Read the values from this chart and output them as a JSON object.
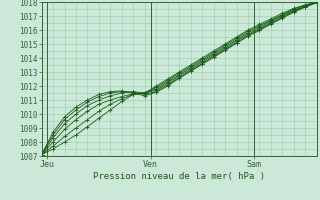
{
  "title": "",
  "xlabel": "Pression niveau de la mer( hPa )",
  "ylabel": "",
  "ylim": [
    1007,
    1018
  ],
  "xlim": [
    0,
    96
  ],
  "yticks": [
    1007,
    1008,
    1009,
    1010,
    1011,
    1012,
    1013,
    1014,
    1015,
    1016,
    1017,
    1018
  ],
  "xtick_positions": [
    2,
    38,
    74
  ],
  "xtick_labels": [
    "Jeu",
    "Ven",
    "Sam"
  ],
  "vline_positions": [
    2,
    38,
    74
  ],
  "bg_color": "#cce8d8",
  "grid_color": "#99ccaa",
  "line_color": "#1a5c1a",
  "marker": "+",
  "lines": [
    {
      "x": [
        0,
        4,
        8,
        12,
        16,
        20,
        24,
        28,
        32,
        36,
        40,
        44,
        48,
        52,
        56,
        60,
        64,
        68,
        72,
        76,
        80,
        84,
        88,
        92,
        96
      ],
      "y": [
        1007.1,
        1007.5,
        1008.0,
        1008.5,
        1009.1,
        1009.7,
        1010.3,
        1010.9,
        1011.4,
        1011.5,
        1012.0,
        1012.5,
        1013.0,
        1013.5,
        1014.0,
        1014.5,
        1015.0,
        1015.5,
        1016.0,
        1016.4,
        1016.8,
        1017.2,
        1017.55,
        1017.8,
        1018.0
      ]
    },
    {
      "x": [
        0,
        4,
        8,
        12,
        16,
        20,
        24,
        28,
        32,
        36,
        40,
        44,
        48,
        52,
        56,
        60,
        64,
        68,
        72,
        76,
        80,
        84,
        88,
        92,
        96
      ],
      "y": [
        1007.1,
        1007.7,
        1008.4,
        1009.0,
        1009.6,
        1010.2,
        1010.7,
        1011.1,
        1011.4,
        1011.5,
        1011.9,
        1012.4,
        1012.9,
        1013.4,
        1013.9,
        1014.4,
        1014.9,
        1015.4,
        1015.9,
        1016.3,
        1016.7,
        1017.1,
        1017.5,
        1017.77,
        1017.97
      ]
    },
    {
      "x": [
        0,
        4,
        8,
        12,
        16,
        20,
        24,
        28,
        32,
        36,
        40,
        44,
        48,
        52,
        56,
        60,
        64,
        68,
        72,
        76,
        80,
        84,
        88,
        92,
        96
      ],
      "y": [
        1007.1,
        1008.0,
        1008.9,
        1009.6,
        1010.2,
        1010.7,
        1011.0,
        1011.25,
        1011.45,
        1011.5,
        1011.8,
        1012.3,
        1012.8,
        1013.3,
        1013.8,
        1014.3,
        1014.8,
        1015.3,
        1015.8,
        1016.2,
        1016.65,
        1017.05,
        1017.42,
        1017.73,
        1017.97
      ]
    },
    {
      "x": [
        0,
        4,
        8,
        12,
        16,
        20,
        24,
        28,
        32,
        36,
        40,
        44,
        48,
        52,
        56,
        60,
        64,
        68,
        72,
        76,
        80,
        84,
        88,
        92,
        96
      ],
      "y": [
        1007.1,
        1008.3,
        1009.3,
        1010.0,
        1010.6,
        1011.0,
        1011.3,
        1011.5,
        1011.6,
        1011.5,
        1011.7,
        1012.2,
        1012.7,
        1013.2,
        1013.7,
        1014.2,
        1014.7,
        1015.2,
        1015.7,
        1016.1,
        1016.55,
        1016.98,
        1017.38,
        1017.7,
        1017.97
      ]
    },
    {
      "x": [
        0,
        4,
        8,
        12,
        16,
        20,
        24,
        28,
        32,
        36,
        40,
        44,
        48,
        52,
        56,
        60,
        64,
        68,
        72,
        76,
        80,
        84,
        88,
        92,
        96
      ],
      "y": [
        1007.1,
        1008.5,
        1009.6,
        1010.3,
        1010.85,
        1011.25,
        1011.5,
        1011.6,
        1011.55,
        1011.4,
        1011.6,
        1012.1,
        1012.6,
        1013.1,
        1013.6,
        1014.1,
        1014.6,
        1015.1,
        1015.6,
        1016.03,
        1016.47,
        1016.9,
        1017.32,
        1017.67,
        1017.97
      ]
    },
    {
      "x": [
        0,
        4,
        8,
        12,
        16,
        20,
        24,
        28,
        32,
        36,
        40,
        44,
        48,
        52,
        56,
        60,
        64,
        68,
        72,
        76,
        80,
        84,
        88,
        92,
        96
      ],
      "y": [
        1007.1,
        1008.7,
        1009.8,
        1010.5,
        1011.0,
        1011.4,
        1011.6,
        1011.65,
        1011.5,
        1011.3,
        1011.55,
        1012.0,
        1012.55,
        1013.05,
        1013.55,
        1014.05,
        1014.55,
        1015.05,
        1015.55,
        1015.97,
        1016.42,
        1016.85,
        1017.27,
        1017.63,
        1017.95
      ]
    }
  ],
  "figsize": [
    3.2,
    2.0
  ],
  "dpi": 100
}
